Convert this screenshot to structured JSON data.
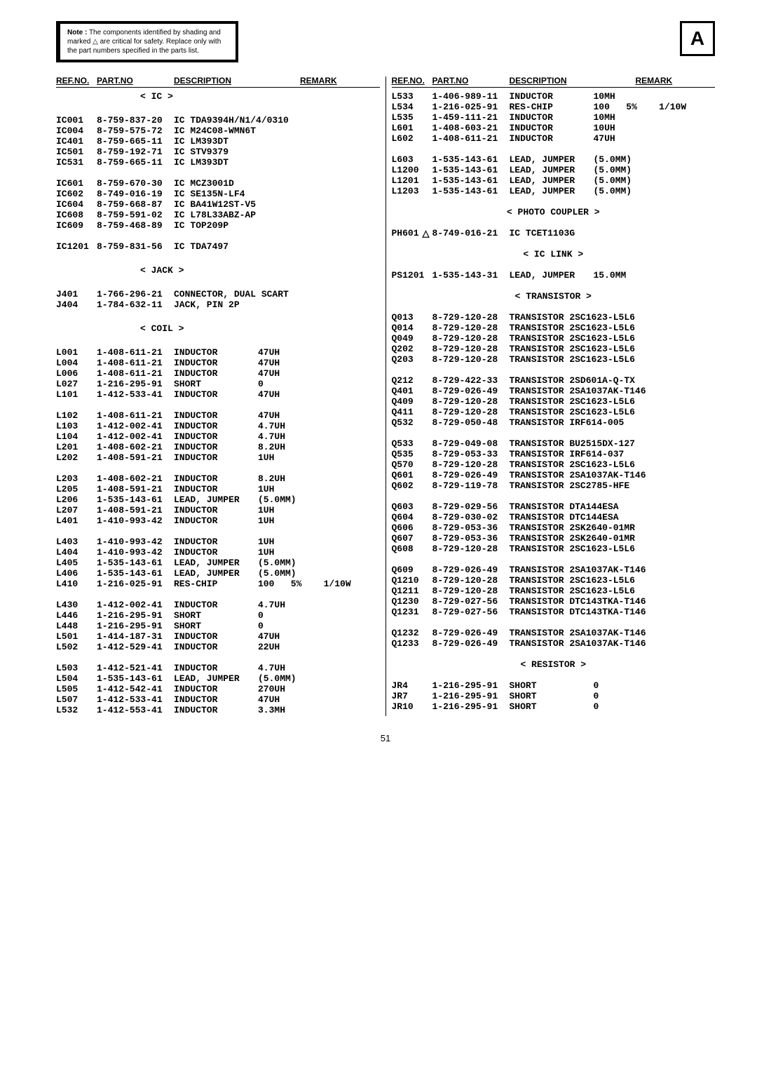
{
  "note": {
    "label": "Note :",
    "text": "The components identified by shading and marked △ are critical for safety. Replace only with the part numbers specified in the parts list."
  },
  "badge": "A",
  "headers": {
    "ref": "REF.NO.",
    "part": "PART.NO",
    "desc": "DESCRIPTION",
    "rem": "REMARK"
  },
  "pagenum": "51",
  "left": [
    {
      "section": "< IC >"
    },
    {
      "blank": true
    },
    {
      "ref": "IC001",
      "part": "8-759-837-20",
      "desc": "IC TDA9394H/N1/4/0310"
    },
    {
      "ref": "IC004",
      "part": "8-759-575-72",
      "desc": "IC M24C08-WMN6T"
    },
    {
      "ref": "IC401",
      "part": "8-759-665-11",
      "desc": "IC LM393DT"
    },
    {
      "ref": "IC501",
      "part": "8-759-192-71",
      "desc": "IC STV9379"
    },
    {
      "ref": "IC531",
      "part": "8-759-665-11",
      "desc": "IC LM393DT"
    },
    {
      "blank": true
    },
    {
      "ref": "IC601",
      "part": "8-759-670-30",
      "desc": "IC MCZ3001D"
    },
    {
      "ref": "IC602",
      "part": "8-749-016-19",
      "desc": "IC SE135N-LF4"
    },
    {
      "ref": "IC604",
      "part": "8-759-668-87",
      "desc": "IC BA41W12ST-V5"
    },
    {
      "ref": "IC608",
      "part": "8-759-591-02",
      "desc": "IC L78L33ABZ-AP"
    },
    {
      "ref": "IC609",
      "part": "8-759-468-89",
      "desc": "IC TOP209P"
    },
    {
      "blank": true
    },
    {
      "ref": "IC1201",
      "part": "8-759-831-56",
      "desc": "IC TDA7497"
    },
    {
      "blank": true
    },
    {
      "section": "< JACK >"
    },
    {
      "blank": true
    },
    {
      "ref": "J401",
      "part": "1-766-296-21",
      "desc": "CONNECTOR, DUAL SCART"
    },
    {
      "ref": "J404",
      "part": "1-784-632-11",
      "desc": "JACK, PIN 2P"
    },
    {
      "blank": true
    },
    {
      "section": "< COIL >"
    },
    {
      "blank": true
    },
    {
      "ref": "L001",
      "part": "1-408-611-21",
      "desc": "INDUCTOR",
      "ext": "47UH"
    },
    {
      "ref": "L004",
      "part": "1-408-611-21",
      "desc": "INDUCTOR",
      "ext": "47UH"
    },
    {
      "ref": "L006",
      "part": "1-408-611-21",
      "desc": "INDUCTOR",
      "ext": "47UH"
    },
    {
      "ref": "L027",
      "part": "1-216-295-91",
      "desc": "SHORT",
      "ext": "0"
    },
    {
      "ref": "L101",
      "part": "1-412-533-41",
      "desc": "INDUCTOR",
      "ext": "47UH"
    },
    {
      "blank": true
    },
    {
      "ref": "L102",
      "part": "1-408-611-21",
      "desc": "INDUCTOR",
      "ext": "47UH"
    },
    {
      "ref": "L103",
      "part": "1-412-002-41",
      "desc": "INDUCTOR",
      "ext": "4.7UH"
    },
    {
      "ref": "L104",
      "part": "1-412-002-41",
      "desc": "INDUCTOR",
      "ext": "4.7UH"
    },
    {
      "ref": "L201",
      "part": "1-408-602-21",
      "desc": "INDUCTOR",
      "ext": "8.2UH"
    },
    {
      "ref": "L202",
      "part": "1-408-591-21",
      "desc": "INDUCTOR",
      "ext": "1UH"
    },
    {
      "blank": true
    },
    {
      "ref": "L203",
      "part": "1-408-602-21",
      "desc": "INDUCTOR",
      "ext": "8.2UH"
    },
    {
      "ref": "L205",
      "part": "1-408-591-21",
      "desc": "INDUCTOR",
      "ext": "1UH"
    },
    {
      "ref": "L206",
      "part": "1-535-143-61",
      "desc": "LEAD, JUMPER",
      "ext": "(5.0MM)"
    },
    {
      "ref": "L207",
      "part": "1-408-591-21",
      "desc": "INDUCTOR",
      "ext": "1UH"
    },
    {
      "ref": "L401",
      "part": "1-410-993-42",
      "desc": "INDUCTOR",
      "ext": "1UH"
    },
    {
      "blank": true
    },
    {
      "ref": "L403",
      "part": "1-410-993-42",
      "desc": "INDUCTOR",
      "ext": "1UH"
    },
    {
      "ref": "L404",
      "part": "1-410-993-42",
      "desc": "INDUCTOR",
      "ext": "1UH"
    },
    {
      "ref": "L405",
      "part": "1-535-143-61",
      "desc": "LEAD, JUMPER",
      "ext": "(5.0MM)"
    },
    {
      "ref": "L406",
      "part": "1-535-143-61",
      "desc": "LEAD, JUMPER",
      "ext": "(5.0MM)"
    },
    {
      "ref": "L410",
      "part": "1-216-025-91",
      "desc": "RES-CHIP",
      "ext": "100   5%    1/10W"
    },
    {
      "blank": true
    },
    {
      "ref": "L430",
      "part": "1-412-002-41",
      "desc": "INDUCTOR",
      "ext": "4.7UH"
    },
    {
      "ref": "L446",
      "part": "1-216-295-91",
      "desc": "SHORT",
      "ext": "0"
    },
    {
      "ref": "L448",
      "part": "1-216-295-91",
      "desc": "SHORT",
      "ext": "0"
    },
    {
      "ref": "L501",
      "part": "1-414-187-31",
      "desc": "INDUCTOR",
      "ext": "47UH"
    },
    {
      "ref": "L502",
      "part": "1-412-529-41",
      "desc": "INDUCTOR",
      "ext": "22UH"
    },
    {
      "blank": true
    },
    {
      "ref": "L503",
      "part": "1-412-521-41",
      "desc": "INDUCTOR",
      "ext": "4.7UH"
    },
    {
      "ref": "L504",
      "part": "1-535-143-61",
      "desc": "LEAD, JUMPER",
      "ext": "(5.0MM)"
    },
    {
      "ref": "L505",
      "part": "1-412-542-41",
      "desc": "INDUCTOR",
      "ext": "270UH"
    },
    {
      "ref": "L507",
      "part": "1-412-533-41",
      "desc": "INDUCTOR",
      "ext": "47UH"
    },
    {
      "ref": "L532",
      "part": "1-412-553-41",
      "desc": "INDUCTOR",
      "ext": "3.3MH"
    }
  ],
  "right": [
    {
      "ref": "L533",
      "part": "1-406-989-11",
      "desc": "INDUCTOR",
      "ext": "10MH"
    },
    {
      "ref": "L534",
      "part": "1-216-025-91",
      "desc": "RES-CHIP",
      "ext": "100   5%    1/10W"
    },
    {
      "ref": "L535",
      "part": "1-459-111-21",
      "desc": "INDUCTOR",
      "ext": "10MH"
    },
    {
      "ref": "L601",
      "part": "1-408-603-21",
      "desc": "INDUCTOR",
      "ext": "10UH"
    },
    {
      "ref": "L602",
      "part": "1-408-611-21",
      "desc": "INDUCTOR",
      "ext": "47UH"
    },
    {
      "blank": true
    },
    {
      "ref": "L603",
      "part": "1-535-143-61",
      "desc": "LEAD, JUMPER",
      "ext": "(5.0MM)"
    },
    {
      "ref": "L1200",
      "part": "1-535-143-61",
      "desc": "LEAD, JUMPER",
      "ext": "(5.0MM)"
    },
    {
      "ref": "L1201",
      "part": "1-535-143-61",
      "desc": "LEAD, JUMPER",
      "ext": "(5.0MM)"
    },
    {
      "ref": "L1203",
      "part": "1-535-143-61",
      "desc": "LEAD, JUMPER",
      "ext": "(5.0MM)"
    },
    {
      "blank": true
    },
    {
      "section": "< PHOTO COUPLER >",
      "center": true
    },
    {
      "blank": true
    },
    {
      "ref": "PH601",
      "tri": true,
      "part": "8-749-016-21",
      "desc": "IC TCET1103G"
    },
    {
      "blank": true
    },
    {
      "section": "< IC LINK >",
      "center": true
    },
    {
      "blank": true
    },
    {
      "ref": "PS1201",
      "part": "1-535-143-31",
      "desc": "LEAD, JUMPER",
      "ext": "15.0MM"
    },
    {
      "blank": true
    },
    {
      "section": "< TRANSISTOR >",
      "center": true
    },
    {
      "blank": true
    },
    {
      "ref": "Q013",
      "part": "8-729-120-28",
      "desc": "TRANSISTOR 2SC1623-L5L6"
    },
    {
      "ref": "Q014",
      "part": "8-729-120-28",
      "desc": "TRANSISTOR 2SC1623-L5L6"
    },
    {
      "ref": "Q049",
      "part": "8-729-120-28",
      "desc": "TRANSISTOR 2SC1623-L5L6"
    },
    {
      "ref": "Q202",
      "part": "8-729-120-28",
      "desc": "TRANSISTOR 2SC1623-L5L6"
    },
    {
      "ref": "Q203",
      "part": "8-729-120-28",
      "desc": "TRANSISTOR 2SC1623-L5L6"
    },
    {
      "blank": true
    },
    {
      "ref": "Q212",
      "part": "8-729-422-33",
      "desc": "TRANSISTOR 2SD601A-Q-TX"
    },
    {
      "ref": "Q401",
      "part": "8-729-026-49",
      "desc": "TRANSISTOR 2SA1037AK-T146"
    },
    {
      "ref": "Q409",
      "part": "8-729-120-28",
      "desc": "TRANSISTOR 2SC1623-L5L6"
    },
    {
      "ref": "Q411",
      "part": "8-729-120-28",
      "desc": "TRANSISTOR 2SC1623-L5L6"
    },
    {
      "ref": "Q532",
      "part": "8-729-050-48",
      "desc": "TRANSISTOR IRF614-005"
    },
    {
      "blank": true
    },
    {
      "ref": "Q533",
      "part": "8-729-049-08",
      "desc": "TRANSISTOR BU2515DX-127"
    },
    {
      "ref": "Q535",
      "part": "8-729-053-33",
      "desc": "TRANSISTOR IRF614-037"
    },
    {
      "ref": "Q570",
      "part": "8-729-120-28",
      "desc": "TRANSISTOR 2SC1623-L5L6"
    },
    {
      "ref": "Q601",
      "part": "8-729-026-49",
      "desc": "TRANSISTOR 2SA1037AK-T146"
    },
    {
      "ref": "Q602",
      "part": "8-729-119-78",
      "desc": "TRANSISTOR 2SC2785-HFE"
    },
    {
      "blank": true
    },
    {
      "ref": "Q603",
      "part": "8-729-029-56",
      "desc": "TRANSISTOR DTA144ESA"
    },
    {
      "ref": "Q604",
      "part": "8-729-030-02",
      "desc": "TRANSISTOR DTC144ESA"
    },
    {
      "ref": "Q606",
      "part": "8-729-053-36",
      "desc": "TRANSISTOR 2SK2640-01MR"
    },
    {
      "ref": "Q607",
      "part": "8-729-053-36",
      "desc": "TRANSISTOR 2SK2640-01MR"
    },
    {
      "ref": "Q608",
      "part": "8-729-120-28",
      "desc": "TRANSISTOR 2SC1623-L5L6"
    },
    {
      "blank": true
    },
    {
      "ref": "Q609",
      "part": "8-729-026-49",
      "desc": "TRANSISTOR 2SA1037AK-T146"
    },
    {
      "ref": "Q1210",
      "part": "8-729-120-28",
      "desc": "TRANSISTOR 2SC1623-L5L6"
    },
    {
      "ref": "Q1211",
      "part": "8-729-120-28",
      "desc": "TRANSISTOR 2SC1623-L5L6"
    },
    {
      "ref": "Q1230",
      "part": "8-729-027-56",
      "desc": "TRANSISTOR DTC143TKA-T146"
    },
    {
      "ref": "Q1231",
      "part": "8-729-027-56",
      "desc": "TRANSISTOR DTC143TKA-T146"
    },
    {
      "blank": true
    },
    {
      "ref": "Q1232",
      "part": "8-729-026-49",
      "desc": "TRANSISTOR 2SA1037AK-T146"
    },
    {
      "ref": "Q1233",
      "part": "8-729-026-49",
      "desc": "TRANSISTOR 2SA1037AK-T146"
    },
    {
      "blank": true
    },
    {
      "section": "< RESISTOR >",
      "center": true
    },
    {
      "blank": true
    },
    {
      "ref": "JR4",
      "part": "1-216-295-91",
      "desc": "SHORT",
      "ext": "0"
    },
    {
      "ref": "JR7",
      "part": "1-216-295-91",
      "desc": "SHORT",
      "ext": "0"
    },
    {
      "ref": "JR10",
      "part": "1-216-295-91",
      "desc": "SHORT",
      "ext": "0"
    }
  ]
}
